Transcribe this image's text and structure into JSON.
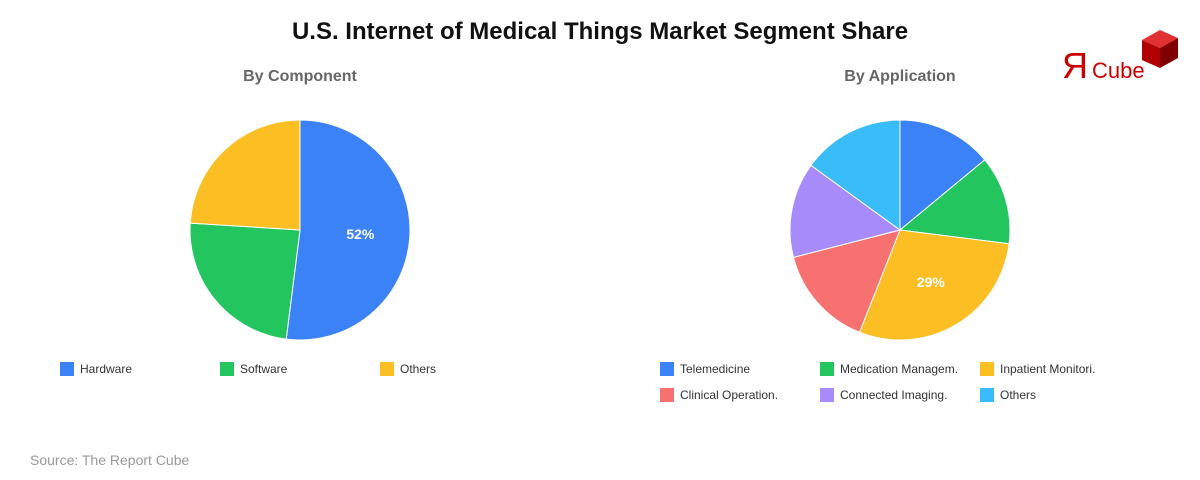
{
  "title": "U.S. Internet of Medical Things Market Segment Share",
  "source": "Source: The Report Cube",
  "logo": {
    "text_r": "Я",
    "text": "Cube"
  },
  "chart_data": [
    {
      "type": "pie",
      "title": "By Component",
      "categories": [
        "Hardware",
        "Software",
        "Others"
      ],
      "values": [
        52,
        24,
        24
      ],
      "colors": [
        "#3b82f6",
        "#22c55e",
        "#fbbf24"
      ],
      "labels_shown": {
        "Hardware": "52%"
      },
      "legend_position": "bottom"
    },
    {
      "type": "pie",
      "title": "By Application",
      "categories": [
        "Telemedicine",
        "Medication Managem.",
        "Inpatient Monitori.",
        "Clinical Operation.",
        "Connected Imaging.",
        "Others"
      ],
      "values": [
        14,
        13,
        29,
        15,
        14,
        15
      ],
      "colors": [
        "#3b82f6",
        "#22c55e",
        "#fbbf24",
        "#f87171",
        "#a78bfa",
        "#38bdf8"
      ],
      "labels_shown": {
        "Inpatient Monitori.": "29%"
      },
      "legend_position": "bottom"
    }
  ],
  "left": {
    "subtitle": "By Component",
    "label": "52%",
    "legend": [
      "Hardware",
      "Software",
      "Others"
    ]
  },
  "right": {
    "subtitle": "By Application",
    "label": "29%",
    "legend": [
      "Telemedicine",
      "Medication Managem.",
      "Inpatient Monitori.",
      "Clinical Operation.",
      "Connected Imaging.",
      "Others"
    ]
  }
}
